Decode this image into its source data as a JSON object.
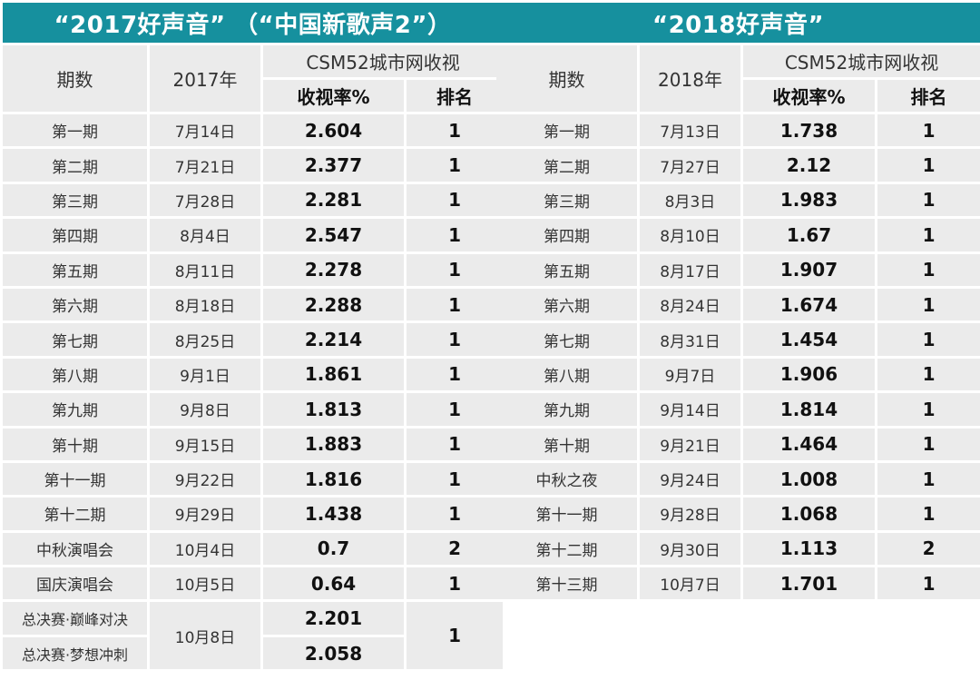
{
  "left": {
    "title": "“2017好声音” （“中国新歌声2”）",
    "headers": {
      "episode": "期数",
      "date": "2017年",
      "csm": "CSM52城市网收视",
      "rating": "收视率%",
      "rank": "排名"
    },
    "rows": [
      {
        "episode": "第一期",
        "date": "7月14日",
        "rating": "2.604",
        "rank": "1"
      },
      {
        "episode": "第二期",
        "date": "7月21日",
        "rating": "2.377",
        "rank": "1"
      },
      {
        "episode": "第三期",
        "date": "7月28日",
        "rating": "2.281",
        "rank": "1"
      },
      {
        "episode": "第四期",
        "date": "8月4日",
        "rating": "2.547",
        "rank": "1"
      },
      {
        "episode": "第五期",
        "date": "8月11日",
        "rating": "2.278",
        "rank": "1"
      },
      {
        "episode": "第六期",
        "date": "8月18日",
        "rating": "2.288",
        "rank": "1"
      },
      {
        "episode": "第七期",
        "date": "8月25日",
        "rating": "2.214",
        "rank": "1"
      },
      {
        "episode": "第八期",
        "date": "9月1日",
        "rating": "1.861",
        "rank": "1"
      },
      {
        "episode": "第九期",
        "date": "9月8日",
        "rating": "1.813",
        "rank": "1"
      },
      {
        "episode": "第十期",
        "date": "9月15日",
        "rating": "1.883",
        "rank": "1"
      },
      {
        "episode": "第十一期",
        "date": "9月22日",
        "rating": "1.816",
        "rank": "1"
      },
      {
        "episode": "第十二期",
        "date": "9月29日",
        "rating": "1.438",
        "rank": "1"
      },
      {
        "episode": "中秋演唱会",
        "date": "10月4日",
        "rating": "0.7",
        "rank": "2"
      },
      {
        "episode": "国庆演唱会",
        "date": "10月5日",
        "rating": "0.64",
        "rank": "1"
      }
    ],
    "final": {
      "episode_a": "总决赛·巅峰对决",
      "episode_b": "总决赛·梦想冲刺",
      "date": "10月8日",
      "rating_a": "2.201",
      "rating_b": "2.058",
      "rank": "1"
    }
  },
  "right": {
    "title": "“2018好声音”",
    "headers": {
      "episode": "期数",
      "date": "2018年",
      "csm": "CSM52城市网收视",
      "rating": "收视率%",
      "rank": "排名"
    },
    "rows": [
      {
        "episode": "第一期",
        "date": "7月13日",
        "rating": "1.738",
        "rank": "1"
      },
      {
        "episode": "第二期",
        "date": "7月27日",
        "rating": "2.12",
        "rank": "1"
      },
      {
        "episode": "第三期",
        "date": "8月3日",
        "rating": "1.983",
        "rank": "1"
      },
      {
        "episode": "第四期",
        "date": "8月10日",
        "rating": "1.67",
        "rank": "1"
      },
      {
        "episode": "第五期",
        "date": "8月17日",
        "rating": "1.907",
        "rank": "1"
      },
      {
        "episode": "第六期",
        "date": "8月24日",
        "rating": "1.674",
        "rank": "1"
      },
      {
        "episode": "第七期",
        "date": "8月31日",
        "rating": "1.454",
        "rank": "1"
      },
      {
        "episode": "第八期",
        "date": "9月7日",
        "rating": "1.906",
        "rank": "1"
      },
      {
        "episode": "第九期",
        "date": "9月14日",
        "rating": "1.814",
        "rank": "1"
      },
      {
        "episode": "第十期",
        "date": "9月21日",
        "rating": "1.464",
        "rank": "1"
      },
      {
        "episode": "中秋之夜",
        "date": "9月24日",
        "rating": "1.008",
        "rank": "1"
      },
      {
        "episode": "第十一期",
        "date": "9月28日",
        "rating": "1.068",
        "rank": "1"
      },
      {
        "episode": "第十二期",
        "date": "9月30日",
        "rating": "1.113",
        "rank": "2"
      },
      {
        "episode": "第十三期",
        "date": "10月7日",
        "rating": "1.701",
        "rank": "1"
      }
    ]
  },
  "colors": {
    "header_band": "#16909e",
    "cell_background": "#ebebeb",
    "header_text": "#ffffff"
  }
}
